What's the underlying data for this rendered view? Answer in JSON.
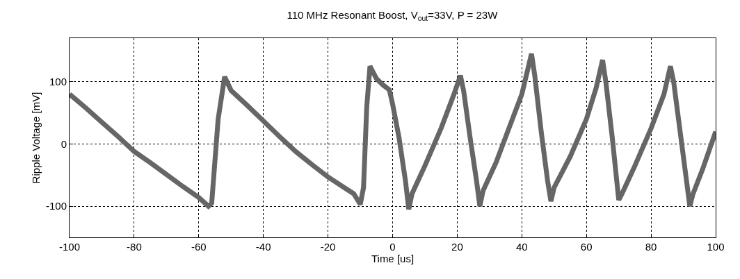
{
  "chart_data": {
    "type": "line",
    "title": "110 MHz Resonant Boost, V$_{out}$=33V, P = 23W",
    "xlabel": "Time [us]",
    "ylabel": "Ripple Voltage [mV]",
    "x": [
      -100,
      -95,
      -90,
      -85,
      -80,
      -75,
      -70,
      -65,
      -60,
      -57,
      -56,
      -54,
      -52,
      -50,
      -45,
      -40,
      -35,
      -30,
      -25,
      -20,
      -15,
      -12,
      -10,
      -9,
      -8,
      -7,
      -5,
      -3,
      -1,
      0,
      2,
      4,
      5,
      6,
      10,
      15,
      19,
      21,
      22,
      24,
      26,
      27,
      28,
      32,
      36,
      40,
      43,
      44,
      46,
      48,
      49,
      50,
      55,
      60,
      63,
      65,
      66,
      68,
      70,
      71,
      75,
      80,
      84,
      86,
      87,
      89,
      91,
      92,
      93,
      96,
      100
    ],
    "series": [
      {
        "color": "#666666",
        "values": [
          80,
          58,
          35,
          12,
          -12,
          -30,
          -49,
          -68,
          -86,
          -100,
          -95,
          40,
          108,
          86,
          62,
          37,
          12,
          -12,
          -33,
          -53,
          -70,
          -80,
          -97,
          -70,
          60,
          125,
          105,
          95,
          87,
          64,
          10,
          -60,
          -105,
          -80,
          -35,
          25,
          80,
          110,
          85,
          10,
          -60,
          -100,
          -75,
          -30,
          25,
          80,
          145,
          110,
          20,
          -60,
          -92,
          -70,
          -20,
          40,
          90,
          135,
          100,
          10,
          -90,
          -80,
          -35,
          25,
          80,
          125,
          100,
          20,
          -60,
          -100,
          -80,
          -40,
          20
        ]
      }
    ],
    "xlim": [
      -100,
      100
    ],
    "xticks": [
      -100,
      -80,
      -60,
      -40,
      -20,
      0,
      20,
      40,
      60,
      80,
      100
    ],
    "ylim": [
      -150,
      170
    ],
    "yticks": [
      -100,
      0,
      100
    ],
    "grid": true,
    "marker": "none",
    "line_style": "solid"
  }
}
